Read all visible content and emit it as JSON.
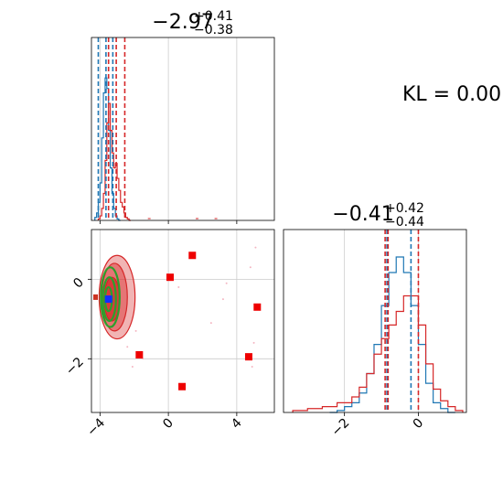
{
  "chart_data": [
    {
      "type": "histogram",
      "panel": "top-left",
      "title_value": "−2.97",
      "title_plus": "+0.41",
      "title_minus": "−0.38",
      "xlim": [
        -4.5,
        6.2
      ],
      "grid": true,
      "series": [
        {
          "color": "#1f77b4",
          "bins_x": [
            -4.3,
            -4.2,
            -4.1,
            -4.0,
            -3.9,
            -3.8,
            -3.7,
            -3.6,
            -3.5,
            -3.4,
            -3.3,
            -3.2,
            -3.1,
            -3.0,
            -2.9
          ],
          "counts": [
            0.02,
            0.05,
            0.12,
            0.25,
            0.55,
            0.85,
            0.95,
            0.88,
            0.6,
            0.35,
            0.18,
            0.08,
            0.03,
            0.01,
            0.0
          ]
        },
        {
          "color": "#d62728",
          "bins_x": [
            -4.1,
            -4.0,
            -3.9,
            -3.8,
            -3.7,
            -3.6,
            -3.5,
            -3.4,
            -3.3,
            -3.2,
            -3.1,
            -3.0,
            -2.9,
            -2.8,
            -2.7,
            -2.6,
            -2.5,
            -2.4,
            -2.3
          ],
          "counts": [
            0.01,
            0.03,
            0.08,
            0.18,
            0.4,
            0.65,
            0.78,
            0.6,
            0.45,
            0.35,
            0.38,
            0.28,
            0.2,
            0.12,
            0.09,
            0.05,
            0.02,
            0.01,
            0.0
          ]
        }
      ],
      "quantile_lines": [
        {
          "x": -4.1,
          "color": "#1f77b4"
        },
        {
          "x": -3.65,
          "color": "#1f77b4"
        },
        {
          "x": -3.25,
          "color": "#1f77b4"
        },
        {
          "x": -3.5,
          "color": "#d62728"
        },
        {
          "x": -3.05,
          "color": "#d62728"
        },
        {
          "x": -2.55,
          "color": "#d62728"
        }
      ]
    },
    {
      "type": "scatter",
      "panel": "bottom-left",
      "xlim": [
        -4.5,
        6.2
      ],
      "ylim": [
        -3.35,
        1.25
      ],
      "xticks": [
        -4,
        0,
        4
      ],
      "yticks": [
        -2,
        0
      ],
      "grid": true,
      "red_markers": [
        {
          "x": 1.4,
          "y": 0.6
        },
        {
          "x": 0.1,
          "y": 0.05
        },
        {
          "x": 5.2,
          "y": -0.7
        },
        {
          "x": -1.7,
          "y": -1.9
        },
        {
          "x": 4.7,
          "y": -1.95
        },
        {
          "x": 0.8,
          "y": -2.7
        }
      ],
      "blue_marker": {
        "x": -3.5,
        "y": -0.5
      },
      "contours_red": [
        {
          "cx": -3.0,
          "cy": -0.45,
          "rx": 1.05,
          "ry": 1.05
        },
        {
          "cx": -3.15,
          "cy": -0.45,
          "rx": 0.75,
          "ry": 0.85
        },
        {
          "cx": -3.3,
          "cy": -0.5,
          "rx": 0.45,
          "ry": 0.55
        }
      ],
      "contours_green": [
        {
          "cx": -3.4,
          "cy": -0.45,
          "rx": 0.55,
          "ry": 0.75
        },
        {
          "cx": -3.45,
          "cy": -0.5,
          "rx": 0.38,
          "ry": 0.55
        },
        {
          "cx": -3.5,
          "cy": -0.5,
          "rx": 0.2,
          "ry": 0.3
        }
      ],
      "background_points": [
        [
          5.1,
          0.8
        ],
        [
          4.8,
          0.3
        ],
        [
          3.2,
          -0.5
        ],
        [
          5.0,
          -1.6
        ],
        [
          -2.1,
          -2.2
        ],
        [
          -1.5,
          -2.0
        ],
        [
          2.5,
          -1.1
        ],
        [
          3.4,
          -0.1
        ],
        [
          4.9,
          -2.2
        ],
        [
          -2.4,
          -1.7
        ],
        [
          -1.9,
          -1.3
        ],
        [
          0.6,
          -0.2
        ]
      ]
    },
    {
      "type": "histogram",
      "panel": "bottom-right",
      "title_value": "−0.41",
      "title_plus": "+0.42",
      "title_minus": "−0.44",
      "xlim": [
        -3.65,
        1.3
      ],
      "xticks": [
        -2,
        0
      ],
      "grid": true,
      "series": [
        {
          "color": "#1f77b4",
          "bins_x": [
            -2.4,
            -2.2,
            -2.0,
            -1.8,
            -1.6,
            -1.4,
            -1.2,
            -1.0,
            -0.8,
            -0.6,
            -0.4,
            -0.2,
            0.0,
            0.2,
            0.4,
            0.6,
            0.8
          ],
          "counts": [
            0.0,
            0.01,
            0.03,
            0.05,
            0.1,
            0.2,
            0.35,
            0.55,
            0.72,
            0.8,
            0.72,
            0.55,
            0.35,
            0.15,
            0.05,
            0.02,
            0.0
          ]
        },
        {
          "color": "#d62728",
          "bins_x": [
            -3.4,
            -3.0,
            -2.6,
            -2.2,
            -1.8,
            -1.6,
            -1.4,
            -1.2,
            -1.0,
            -0.8,
            -0.6,
            -0.4,
            -0.2,
            0.0,
            0.2,
            0.4,
            0.6,
            0.8,
            1.0
          ],
          "counts": [
            0.01,
            0.02,
            0.03,
            0.05,
            0.08,
            0.13,
            0.2,
            0.3,
            0.38,
            0.45,
            0.52,
            0.6,
            0.6,
            0.45,
            0.25,
            0.12,
            0.06,
            0.03,
            0.01
          ]
        }
      ],
      "quantile_lines": [
        {
          "x": -0.85,
          "color": "#1f77b4"
        },
        {
          "x": -0.2,
          "color": "#1f77b4"
        },
        {
          "x": -0.9,
          "color": "#d62728"
        },
        {
          "x": -0.82,
          "color": "#d62728"
        },
        {
          "x": 0.0,
          "color": "#d62728"
        }
      ]
    }
  ],
  "kl_label": "KL = 0.00",
  "colors": {
    "blue": "#1f77b4",
    "red": "#d62728",
    "green": "#2ca02c",
    "grid": "#cccccc"
  }
}
